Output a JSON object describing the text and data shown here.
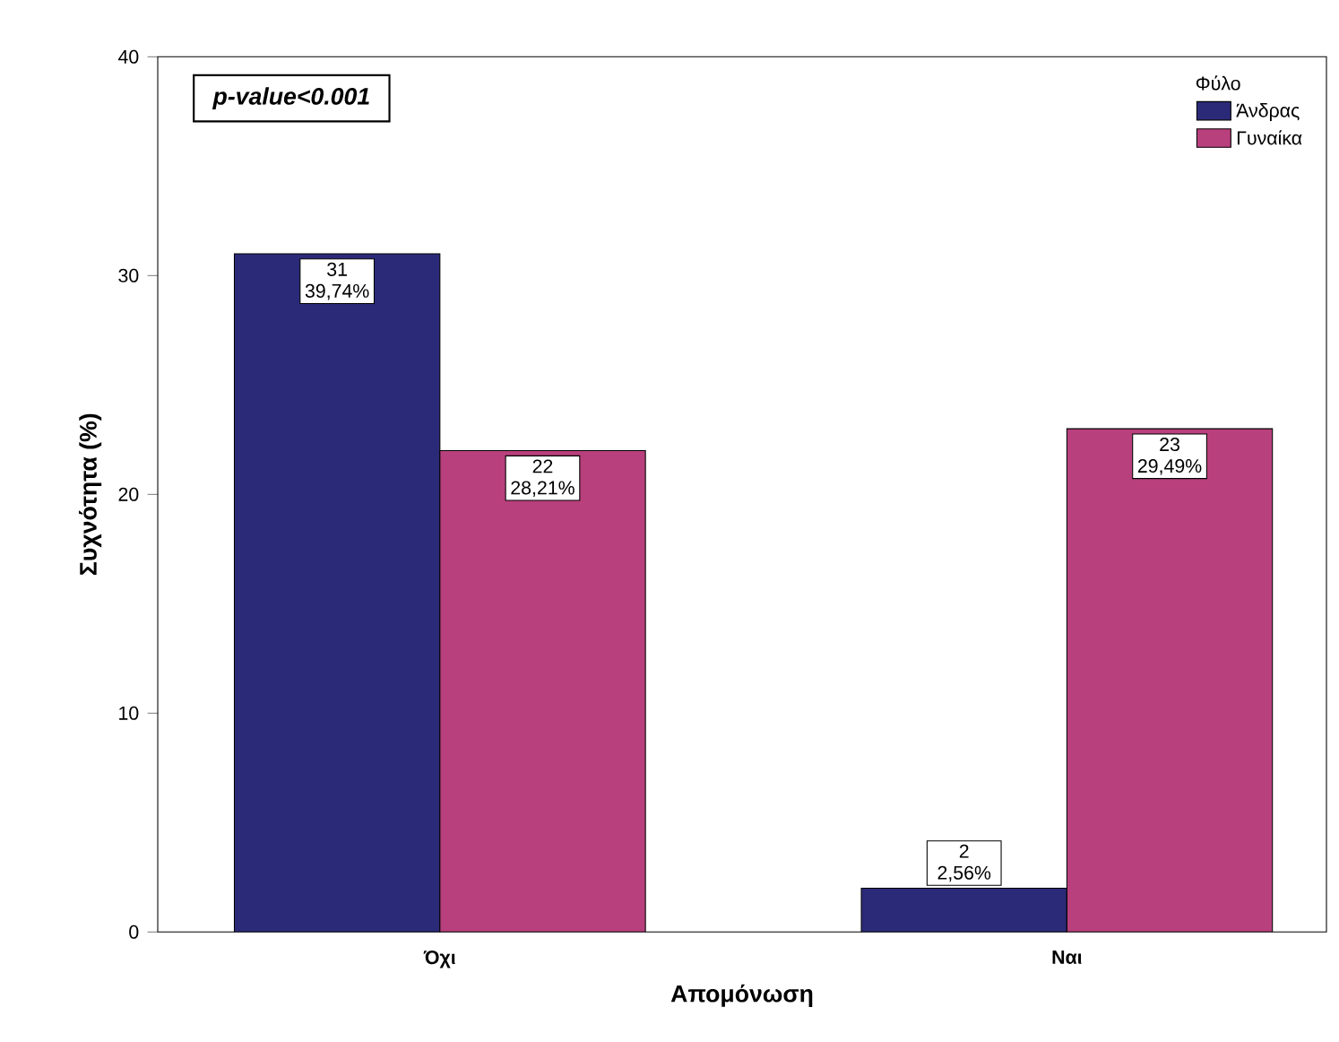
{
  "chart_data": {
    "type": "bar",
    "xlabel": "Απομόνωση",
    "ylabel": "Συχνότητα (%)",
    "legend_title": "Φύλο",
    "categories": [
      "Όχι",
      "Ναι"
    ],
    "series": [
      {
        "name": "Άνδρας",
        "color": "#2b2a78",
        "values": [
          31,
          2
        ],
        "value_labels": [
          "31 39,74%",
          "2 2,56%"
        ]
      },
      {
        "name": "Γυναίκα",
        "color": "#b8407c",
        "values": [
          22,
          23
        ],
        "value_labels": [
          "22 28,21%",
          "23 29,49%"
        ]
      }
    ],
    "ylim": [
      0,
      40
    ],
    "yticks": [
      0,
      10,
      20,
      30,
      40
    ],
    "grid": false,
    "legend": "top right",
    "annotations": [
      "p-value<0.001"
    ]
  }
}
